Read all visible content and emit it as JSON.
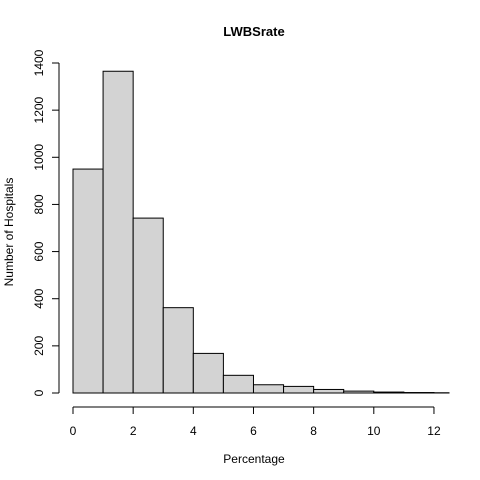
{
  "chart_data": {
    "type": "bar",
    "title": "LWBSrate",
    "xlabel": "Percentage",
    "ylabel": "Number of Hospitals",
    "bins": [
      {
        "from": 0,
        "to": 1,
        "count": 950
      },
      {
        "from": 1,
        "to": 2,
        "count": 1365
      },
      {
        "from": 2,
        "to": 3,
        "count": 742
      },
      {
        "from": 3,
        "to": 4,
        "count": 362
      },
      {
        "from": 4,
        "to": 5,
        "count": 168
      },
      {
        "from": 5,
        "to": 6,
        "count": 75
      },
      {
        "from": 6,
        "to": 7,
        "count": 35
      },
      {
        "from": 7,
        "to": 8,
        "count": 28
      },
      {
        "from": 8,
        "to": 9,
        "count": 15
      },
      {
        "from": 9,
        "to": 10,
        "count": 8
      },
      {
        "from": 10,
        "to": 11,
        "count": 4
      },
      {
        "from": 11,
        "to": 12,
        "count": 2
      },
      {
        "from": 12,
        "to": 12.5,
        "count": 1
      }
    ],
    "xlim": [
      0,
      12.5
    ],
    "ylim": [
      0,
      1400
    ],
    "x_ticks": [
      "0",
      "2",
      "4",
      "6",
      "8",
      "10",
      "12"
    ],
    "y_ticks": [
      "0",
      "200",
      "400",
      "600",
      "800",
      "1000",
      "1200",
      "1400"
    ],
    "grid": false,
    "legend": "none"
  }
}
